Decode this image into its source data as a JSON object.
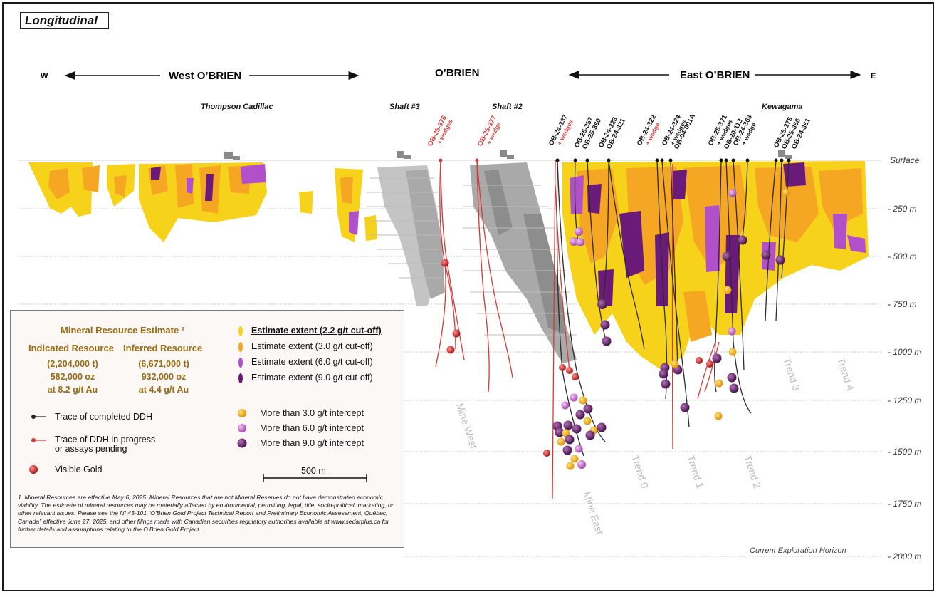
{
  "title": "Longitudinal",
  "directions": {
    "west": "W",
    "east": "E"
  },
  "zones": {
    "west": "West O’BRIEN",
    "center": "O’BRIEN",
    "east": "East O’BRIEN"
  },
  "places": {
    "thompson": "Thompson Cadillac",
    "shaft3": "Shaft #3",
    "shaft2": "Shaft #2",
    "kewagama": "Kewagama"
  },
  "depth_labels": [
    "Surface",
    "- 250 m",
    "- 500 m",
    "- 750 m",
    "- 1000 m",
    "- 1250 m",
    "- 1500 m",
    "- 1750 m",
    "- 2000 m"
  ],
  "horizon_label": "Current Exploration Horizon",
  "structure_labels": [
    "Mine West",
    "Mine East",
    "Trend 0",
    "Trend 1",
    "Trend 2",
    "Trend 3",
    "Trend 4"
  ],
  "drill_holes_red": [
    "OB-25-376",
    "OB-25-377"
  ],
  "drill_holes_red_sub": [
    "+ wedges",
    "+ wedge"
  ],
  "drill_holes_black": [
    "OB-24-337",
    "OB-25-357",
    "OB-25-360",
    "OB-24-323",
    "OB-24-321",
    "OB-24-322",
    "OB-24-324",
    "OB-04-001A",
    "OB-25-371",
    "OB-20-113",
    "OB-24-363",
    "OB-25-375",
    "OB-25-366",
    "OB-24-361"
  ],
  "drill_holes_black_sub": [
    "+ wedges",
    "",
    "",
    "",
    "",
    "+ wedge",
    "+ wedges",
    "",
    "+ wedges",
    "",
    "+ wedge",
    "",
    "",
    ""
  ],
  "legend": {
    "mre_title": "Mineral Resource Estimate ¹",
    "indicated": {
      "header": "Indicated Resource",
      "tonnes": "(2,204,000 t)",
      "ounces": "582,000 oz",
      "grade": "at 8.2 g/t Au"
    },
    "inferred": {
      "header": "Inferred Resource",
      "tonnes": "(6,671,000 t)",
      "ounces": "932,000 oz",
      "grade": "at 4.4 g/t Au"
    },
    "extent_items": [
      {
        "label": "Estimate extent (2.2  g/t cut-off)",
        "color": "#f7d21a"
      },
      {
        "label": "Estimate extent (3.0  g/t cut-off)",
        "color": "#f5a623"
      },
      {
        "label": "Estimate extent (6.0  g/t cut-off)",
        "color": "#b150c8"
      },
      {
        "label": "Estimate extent (9.0  g/t cut-off)",
        "color": "#6a1b7a"
      }
    ],
    "ddh_completed": "Trace of completed DDH",
    "ddh_progress_line1": "Trace of DDH in progress",
    "ddh_progress_line2": "or assays pending",
    "visible_gold": "Visible Gold",
    "intercepts": [
      {
        "label": "More than 3.0 g/t intercept",
        "color": "#f5a81d"
      },
      {
        "label": "More than 6.0 g/t intercept",
        "color": "#c86ac8"
      },
      {
        "label": "More than 9.0 g/t intercept",
        "color": "#6a1f6f"
      }
    ],
    "scale_label": "500 m",
    "footnote": "1. Mineral Resources are effective May 6, 2025. Mineral Resources that are not Mineral Reserves do not have demonstrated economic viability. The estimate of mineral resources may be materially affected by environmental, permitting, legal, title, socio-political, marketing, or other relevant issues. Please see the NI 43-101 “O’Brien Gold Project Technical Report and Preliminary Economic Assessment, Québec, Canada” effective June 27, 2025, and other filings made with Canadian securities regulatory authorities available at www.sedarplus.ca for further details and assumptions relating to the O’Brien Gold Project."
  },
  "colors": {
    "yellow": "#f7d21a",
    "orange": "#f5a623",
    "purple": "#b150c8",
    "dark_purple": "#6a1b7a",
    "workings": "#a8a8a8",
    "red_hole": "#d23a3a",
    "black_hole": "#222222",
    "gold_label": "#9a6b14"
  }
}
